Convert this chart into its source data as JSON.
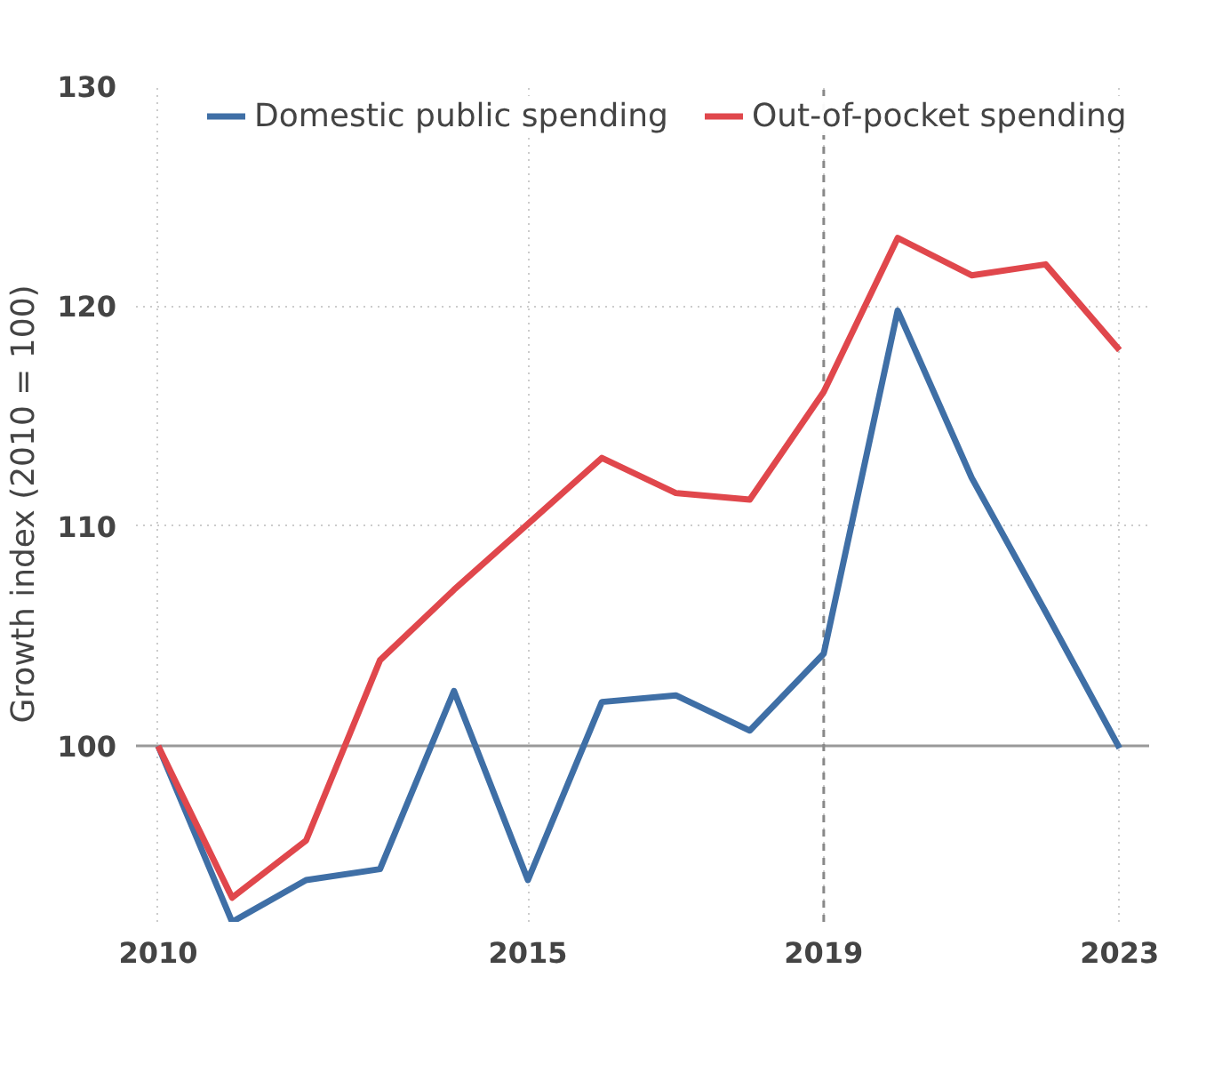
{
  "chart_data": {
    "type": "line",
    "ylabel": "Growth index (2010 = 100)",
    "x": [
      2010,
      2011,
      2012,
      2013,
      2014,
      2015,
      2016,
      2017,
      2018,
      2019,
      2020,
      2021,
      2022,
      2023
    ],
    "series": [
      {
        "name": "Domestic public spending",
        "color": "#3f6fa6",
        "values": [
          100,
          92.0,
          93.9,
          94.4,
          102.5,
          93.9,
          102.0,
          102.3,
          100.7,
          104.2,
          119.8,
          112.2,
          106.1,
          99.9
        ]
      },
      {
        "name": "Out-of-pocket spending",
        "color": "#e0474c",
        "values": [
          100,
          93.1,
          95.7,
          103.9,
          107.1,
          110.1,
          113.1,
          111.5,
          111.2,
          116.1,
          123.1,
          121.4,
          121.9,
          118.0
        ]
      }
    ],
    "xlim": [
      2009.7,
      2023.4
    ],
    "ylim": [
      92,
      130
    ],
    "xticks": [
      2010,
      2015,
      2019,
      2023
    ],
    "yticks": [
      100,
      110,
      120,
      130
    ],
    "grid": true,
    "legend": "top",
    "line_style": "solid",
    "ref_lines": [
      {
        "axis": "y",
        "value": 100,
        "color": "#999999",
        "line_style": "solid"
      },
      {
        "axis": "x",
        "value": 2019,
        "color": "#888888",
        "line_style": "dashed"
      }
    ]
  }
}
